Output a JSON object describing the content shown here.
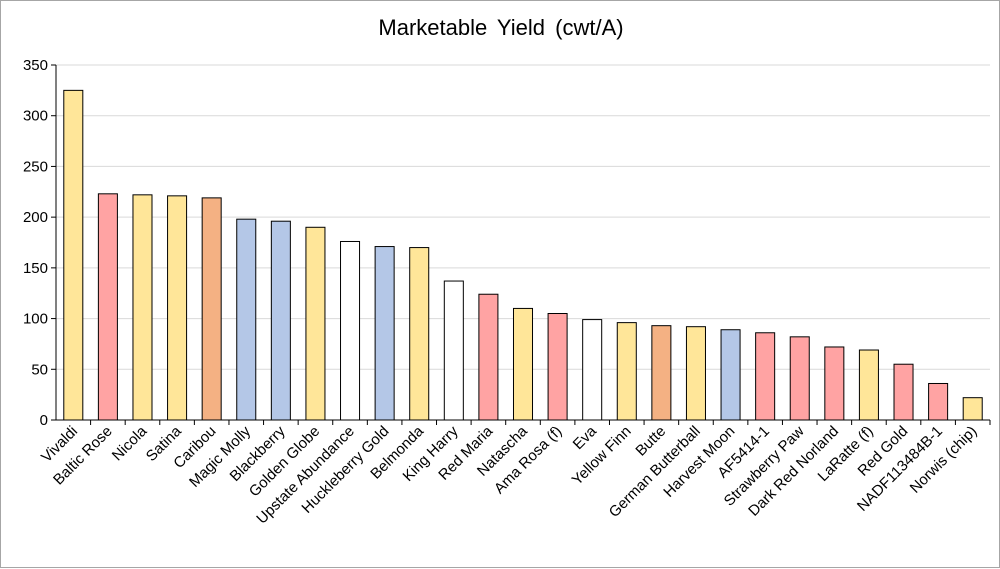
{
  "chart_data": {
    "type": "bar",
    "title": "Marketable Yield (cwt/A)",
    "xlabel": "",
    "ylabel": "",
    "ylim": [
      0,
      350
    ],
    "yticks": [
      0,
      50,
      100,
      150,
      200,
      250,
      300,
      350
    ],
    "grid": true,
    "legend": "none",
    "colors": {
      "yellow": "#ffe699",
      "pink": "#ffa3a3",
      "orange": "#f4b183",
      "blue": "#b4c7e7",
      "white": "#ffffff",
      "outline": "#000000",
      "grid": "#d9d9d9"
    },
    "categories": [
      "Vivaldi",
      "Baltic Rose",
      "Nicola",
      "Satina",
      "Caribou",
      "Magic Molly",
      "Blackberry",
      "Golden Globe",
      "Upstate Abundance",
      "Huckleberry Gold",
      "Belmonda",
      "King Harry",
      "Red Maria",
      "Natascha",
      "Ama Rosa (f)",
      "Eva",
      "Yellow Finn",
      "Butte",
      "German Butterball",
      "Harvest Moon",
      "AF5414-1",
      "Strawberry Paw",
      "Dark Red Norland",
      "LaRatte (f)",
      "Red Gold",
      "NADF113484B-1",
      "Norwis (chip)"
    ],
    "values": [
      325,
      223,
      222,
      221,
      219,
      198,
      196,
      190,
      176,
      171,
      170,
      137,
      124,
      110,
      105,
      99,
      96,
      93,
      92,
      89,
      86,
      82,
      72,
      69,
      55,
      36,
      22
    ],
    "bar_colors": [
      "yellow",
      "pink",
      "yellow",
      "yellow",
      "orange",
      "blue",
      "blue",
      "yellow",
      "white",
      "blue",
      "yellow",
      "white",
      "pink",
      "yellow",
      "pink",
      "white",
      "yellow",
      "orange",
      "yellow",
      "blue",
      "pink",
      "pink",
      "pink",
      "yellow",
      "pink",
      "pink",
      "yellow"
    ]
  }
}
